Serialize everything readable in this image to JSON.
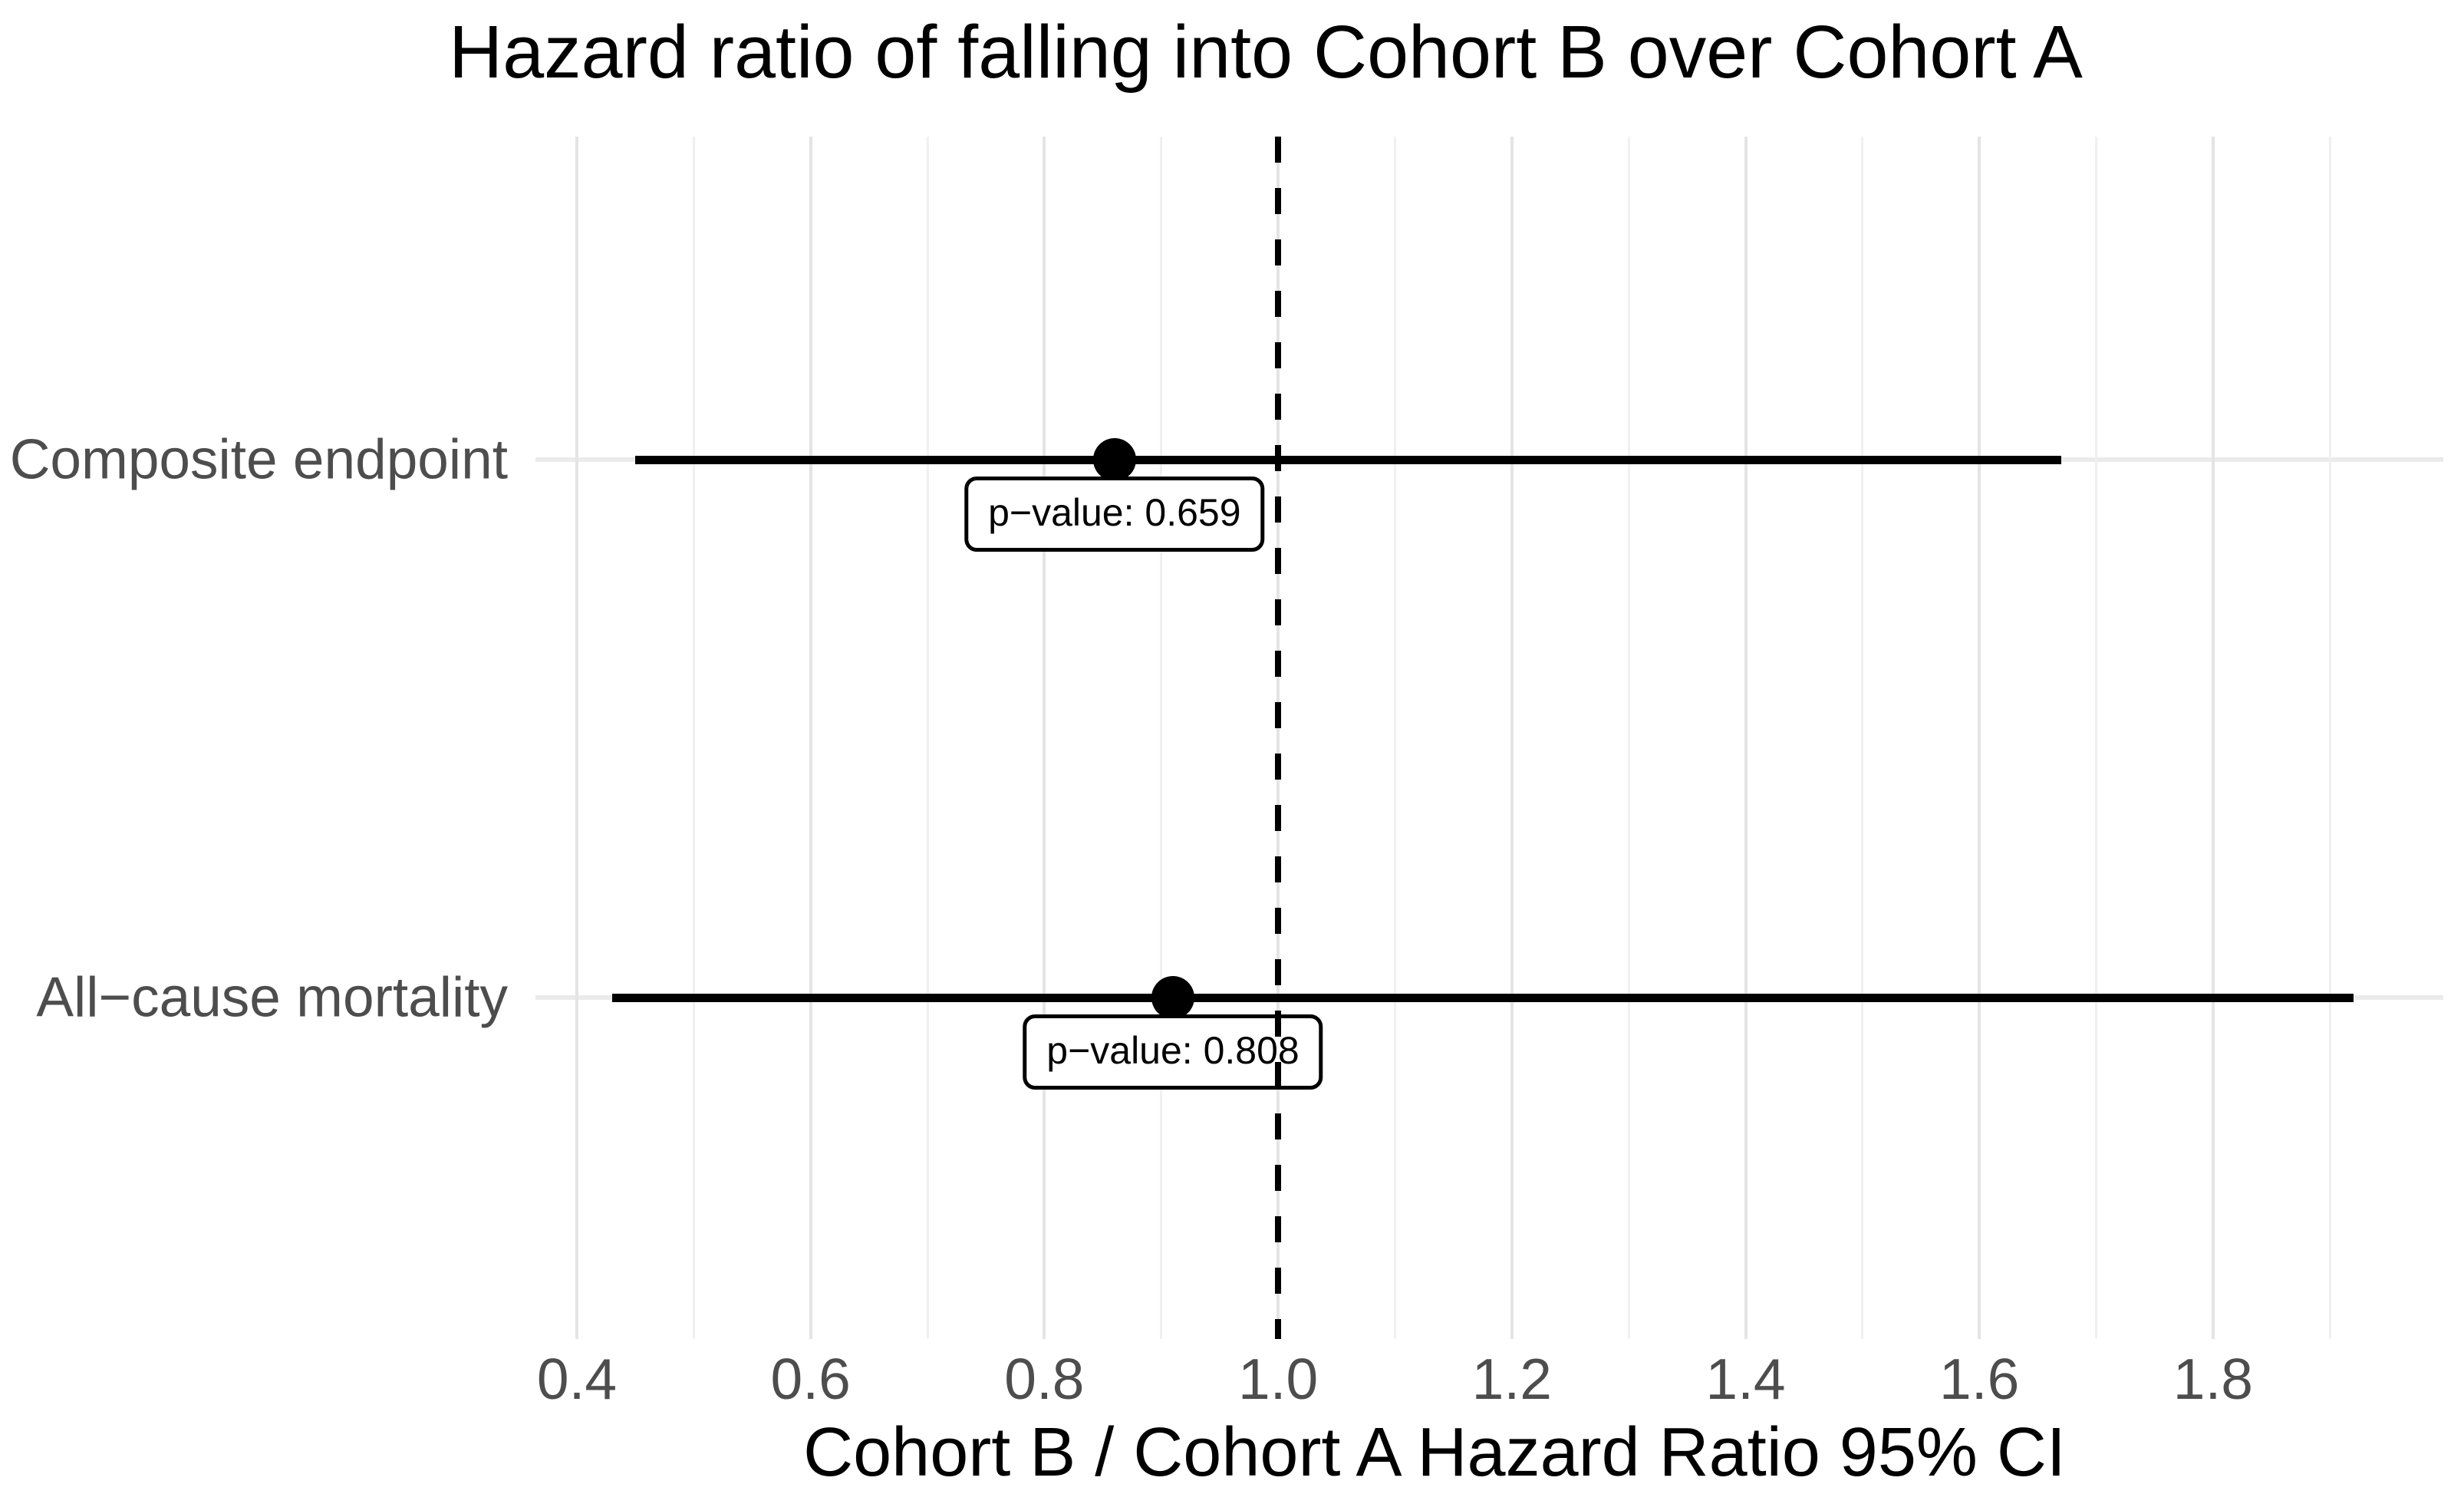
{
  "chart_data": {
    "type": "forest",
    "title": "Hazard ratio of falling into Cohort B over Cohort A",
    "xlabel": "Cohort B / Cohort A Hazard Ratio 95% CI",
    "x_ticks": [
      "0.4",
      "0.6",
      "0.8",
      "1.0",
      "1.2",
      "1.4",
      "1.6",
      "1.8"
    ],
    "xlim": [
      0.365,
      2.0
    ],
    "reference_line": 1.0,
    "grid": "major-and-minor, no axis lines, no tick marks (theme_minimal)",
    "legend": "none",
    "rows": [
      {
        "label": "Composite endpoint",
        "hr": 0.86,
        "ci_low": 0.45,
        "ci_high": 1.67,
        "p_label": "p−value: 0.659"
      },
      {
        "label": "All−cause mortality",
        "hr": 0.91,
        "ci_low": 0.43,
        "ci_high": 1.92,
        "p_label": "p−value: 0.808"
      }
    ],
    "colors": {
      "series": "#000000",
      "axis_text": "#4d4d4d",
      "grid_major": "#e4e4e4",
      "grid_minor": "#f0f0f0",
      "row_line": "#ebebeb",
      "background": "#ffffff"
    }
  }
}
